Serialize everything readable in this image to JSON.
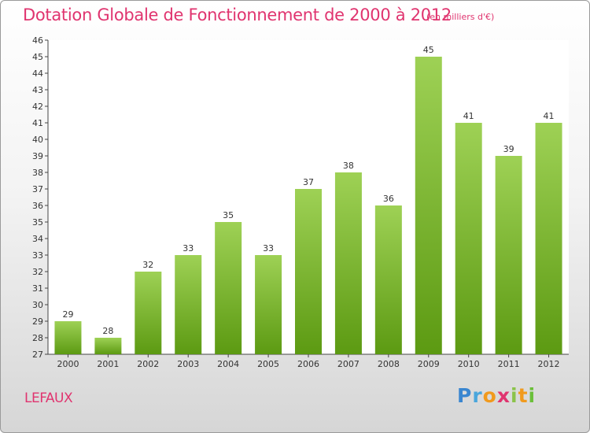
{
  "header": {
    "title": "Dotation Globale de Fonctionnement de 2000 à 2012",
    "subtitle": "(en milliers d'€)"
  },
  "footer": {
    "commune": "LEFAUX",
    "logo": "Proxiti"
  },
  "colors": {
    "title": "#e0346f",
    "bar_top": "#9ed155",
    "bar_bottom": "#5c9a12"
  },
  "chart_data": {
    "type": "bar",
    "title": "Dotation Globale de Fonctionnement de 2000 à 2012",
    "subtitle": "(en milliers d'€)",
    "xlabel": "",
    "ylabel": "",
    "categories": [
      "2000",
      "2001",
      "2002",
      "2003",
      "2004",
      "2005",
      "2006",
      "2007",
      "2008",
      "2009",
      "2010",
      "2011",
      "2012"
    ],
    "values": [
      29,
      28,
      32,
      33,
      35,
      33,
      37,
      38,
      36,
      45,
      41,
      39,
      41
    ],
    "ylim": [
      27,
      46
    ],
    "yticks": [
      27,
      28,
      29,
      30,
      31,
      32,
      33,
      34,
      35,
      36,
      37,
      38,
      39,
      40,
      41,
      42,
      43,
      44,
      45,
      46
    ],
    "grid": false,
    "data_labels": true
  }
}
